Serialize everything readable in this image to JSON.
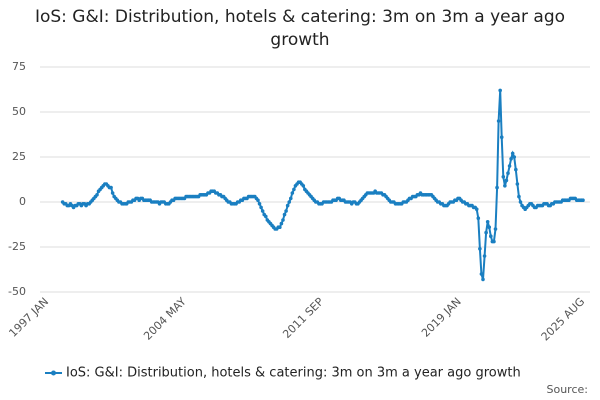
{
  "chart_data": {
    "type": "line",
    "title": "IoS: G&I: Distribution, hotels & catering: 3m on 3m a year ago growth",
    "source": "Source:",
    "categories": [
      "1997 JAN",
      null,
      null,
      null,
      null,
      null,
      null,
      null,
      null,
      null,
      null,
      null,
      null,
      null,
      null,
      null,
      null,
      null,
      null,
      null,
      null,
      null,
      null,
      null,
      null,
      null,
      null,
      null,
      null,
      null,
      null,
      null,
      null,
      null,
      null,
      null,
      null,
      null,
      null,
      null,
      null,
      null,
      null,
      null,
      null,
      null,
      null,
      null,
      null,
      null,
      null,
      null,
      null,
      null,
      null,
      null,
      null,
      null,
      null,
      null,
      null,
      null,
      null,
      null,
      null,
      null,
      null,
      null,
      null,
      null,
      null,
      null,
      null,
      null,
      null,
      null,
      null,
      null,
      null,
      null,
      null,
      null,
      null,
      null,
      null,
      null,
      null,
      null,
      "2004 MAY",
      null,
      null,
      null,
      null,
      null,
      null,
      null,
      null,
      null,
      null,
      null,
      null,
      null,
      null,
      null,
      null,
      null,
      null,
      null,
      null,
      null,
      null,
      null,
      null,
      null,
      null,
      null,
      null,
      null,
      null,
      null,
      null,
      null,
      null,
      null,
      null,
      null,
      null,
      null,
      null,
      null,
      null,
      null,
      null,
      null,
      null,
      null,
      null,
      null,
      null,
      null,
      null,
      null,
      null,
      null,
      null,
      null,
      null,
      null,
      null,
      null,
      null,
      null,
      null,
      null,
      null,
      null,
      null,
      null,
      null,
      null,
      null,
      null,
      null,
      null,
      null,
      null,
      null,
      null,
      null,
      null,
      null,
      null,
      null,
      null,
      null,
      null,
      "2011 SEP",
      null,
      null,
      null,
      null,
      null,
      null,
      null,
      null,
      null,
      null,
      null,
      null,
      null,
      null,
      null,
      null,
      null,
      null,
      null,
      null,
      null,
      null,
      null,
      null,
      null,
      null,
      null,
      null,
      null,
      null,
      null,
      null,
      null,
      null,
      null,
      null,
      null,
      null,
      null,
      null,
      null,
      null,
      null,
      null,
      null,
      null,
      null,
      null,
      null,
      null,
      null,
      null,
      null,
      null,
      null,
      null,
      null,
      null,
      null,
      null,
      null,
      null,
      null,
      null,
      null,
      null,
      null,
      null,
      null,
      null,
      null,
      null,
      null,
      null,
      null,
      null,
      null,
      null,
      null,
      null,
      null,
      null,
      null,
      null,
      null,
      null,
      null,
      "2019 JAN",
      null,
      null,
      null,
      null,
      null,
      null,
      null,
      null,
      null,
      null,
      null,
      null,
      null,
      null,
      null,
      null,
      null,
      null,
      null,
      null,
      null,
      null,
      null,
      null,
      null,
      null,
      null,
      null,
      null,
      null,
      null,
      null,
      null,
      null,
      null,
      null,
      null,
      null,
      null,
      null,
      null,
      null,
      null,
      null,
      null,
      null,
      null,
      null,
      null,
      null,
      null,
      null,
      null,
      null,
      null,
      null,
      null,
      null,
      null,
      null,
      null,
      null,
      null,
      null,
      null,
      null,
      null,
      null,
      null,
      null,
      null,
      null,
      null,
      null,
      null,
      null,
      null,
      null,
      "2025 AUG"
    ],
    "series": [
      {
        "name": "IoS: G&I: Distribution, hotels & catering: 3m on 3m a year ago growth",
        "color": "#1a7fc1",
        "values": [
          null,
          null,
          null,
          null,
          null,
          null,
          null,
          null,
          null,
          null,
          0,
          -1,
          -1,
          -2,
          -2,
          -1,
          -2,
          -3,
          -2,
          -2,
          -1,
          -1,
          -2,
          -1,
          -1,
          -2,
          -1,
          -1,
          0,
          1,
          2,
          3,
          4,
          6,
          7,
          8,
          9,
          10,
          10,
          9,
          8,
          8,
          5,
          3,
          2,
          1,
          0,
          0,
          -1,
          -1,
          -1,
          -1,
          0,
          0,
          0,
          1,
          1,
          2,
          2,
          1,
          2,
          2,
          1,
          1,
          1,
          1,
          1,
          0,
          0,
          0,
          0,
          0,
          -1,
          0,
          0,
          0,
          -1,
          -1,
          -1,
          0,
          1,
          1,
          2,
          2,
          2,
          2,
          2,
          2,
          2,
          3,
          3,
          3,
          3,
          3,
          3,
          3,
          3,
          3,
          4,
          4,
          4,
          4,
          4,
          5,
          5,
          6,
          6,
          6,
          5,
          5,
          4,
          4,
          3,
          3,
          2,
          1,
          0,
          0,
          -1,
          -1,
          -1,
          -1,
          0,
          0,
          1,
          1,
          2,
          2,
          2,
          3,
          3,
          3,
          3,
          3,
          2,
          1,
          -1,
          -3,
          -5,
          -7,
          -8,
          -10,
          -11,
          -12,
          -13,
          -14,
          -15,
          -15,
          -14,
          -14,
          -12,
          -10,
          -7,
          -5,
          -2,
          0,
          2,
          5,
          7,
          9,
          10,
          11,
          11,
          10,
          9,
          7,
          6,
          5,
          4,
          3,
          2,
          1,
          0,
          0,
          -1,
          -1,
          -1,
          0,
          0,
          0,
          0,
          0,
          0,
          1,
          1,
          1,
          2,
          2,
          1,
          1,
          1,
          0,
          0,
          0,
          0,
          -1,
          0,
          0,
          -1,
          -1,
          0,
          1,
          2,
          3,
          4,
          5,
          5,
          5,
          5,
          5,
          6,
          5,
          5,
          5,
          5,
          4,
          4,
          3,
          2,
          1,
          0,
          0,
          0,
          -1,
          -1,
          -1,
          -1,
          -1,
          0,
          0,
          0,
          1,
          2,
          2,
          3,
          3,
          3,
          4,
          4,
          5,
          4,
          4,
          4,
          4,
          4,
          4,
          4,
          3,
          2,
          1,
          0,
          0,
          -1,
          -1,
          -2,
          -2,
          -2,
          -1,
          0,
          0,
          0,
          1,
          1,
          2,
          2,
          1,
          0,
          0,
          -1,
          -1,
          -2,
          -2,
          -2,
          -3,
          -3,
          -4,
          -9,
          -26,
          -40,
          -43,
          -30,
          -17,
          -11,
          -14,
          -19,
          -22,
          -22,
          -15,
          8,
          45,
          62,
          36,
          14,
          9,
          12,
          16,
          20,
          24,
          27,
          25,
          18,
          10,
          3,
          0,
          -2,
          -3,
          -4,
          -3,
          -2,
          -1,
          -1,
          -2,
          -3,
          -3,
          -2,
          -2,
          -2,
          -2,
          -1,
          -1,
          -1,
          -2,
          -2,
          -1,
          -1,
          0,
          0,
          0,
          0,
          0,
          1,
          1,
          1,
          1,
          1,
          2,
          2,
          2,
          2,
          1,
          1,
          1,
          1,
          1
        ]
      }
    ],
    "ylim": [
      -50,
      75
    ],
    "yticks": [
      -50,
      -25,
      0,
      25,
      50,
      75
    ],
    "grid": true
  }
}
